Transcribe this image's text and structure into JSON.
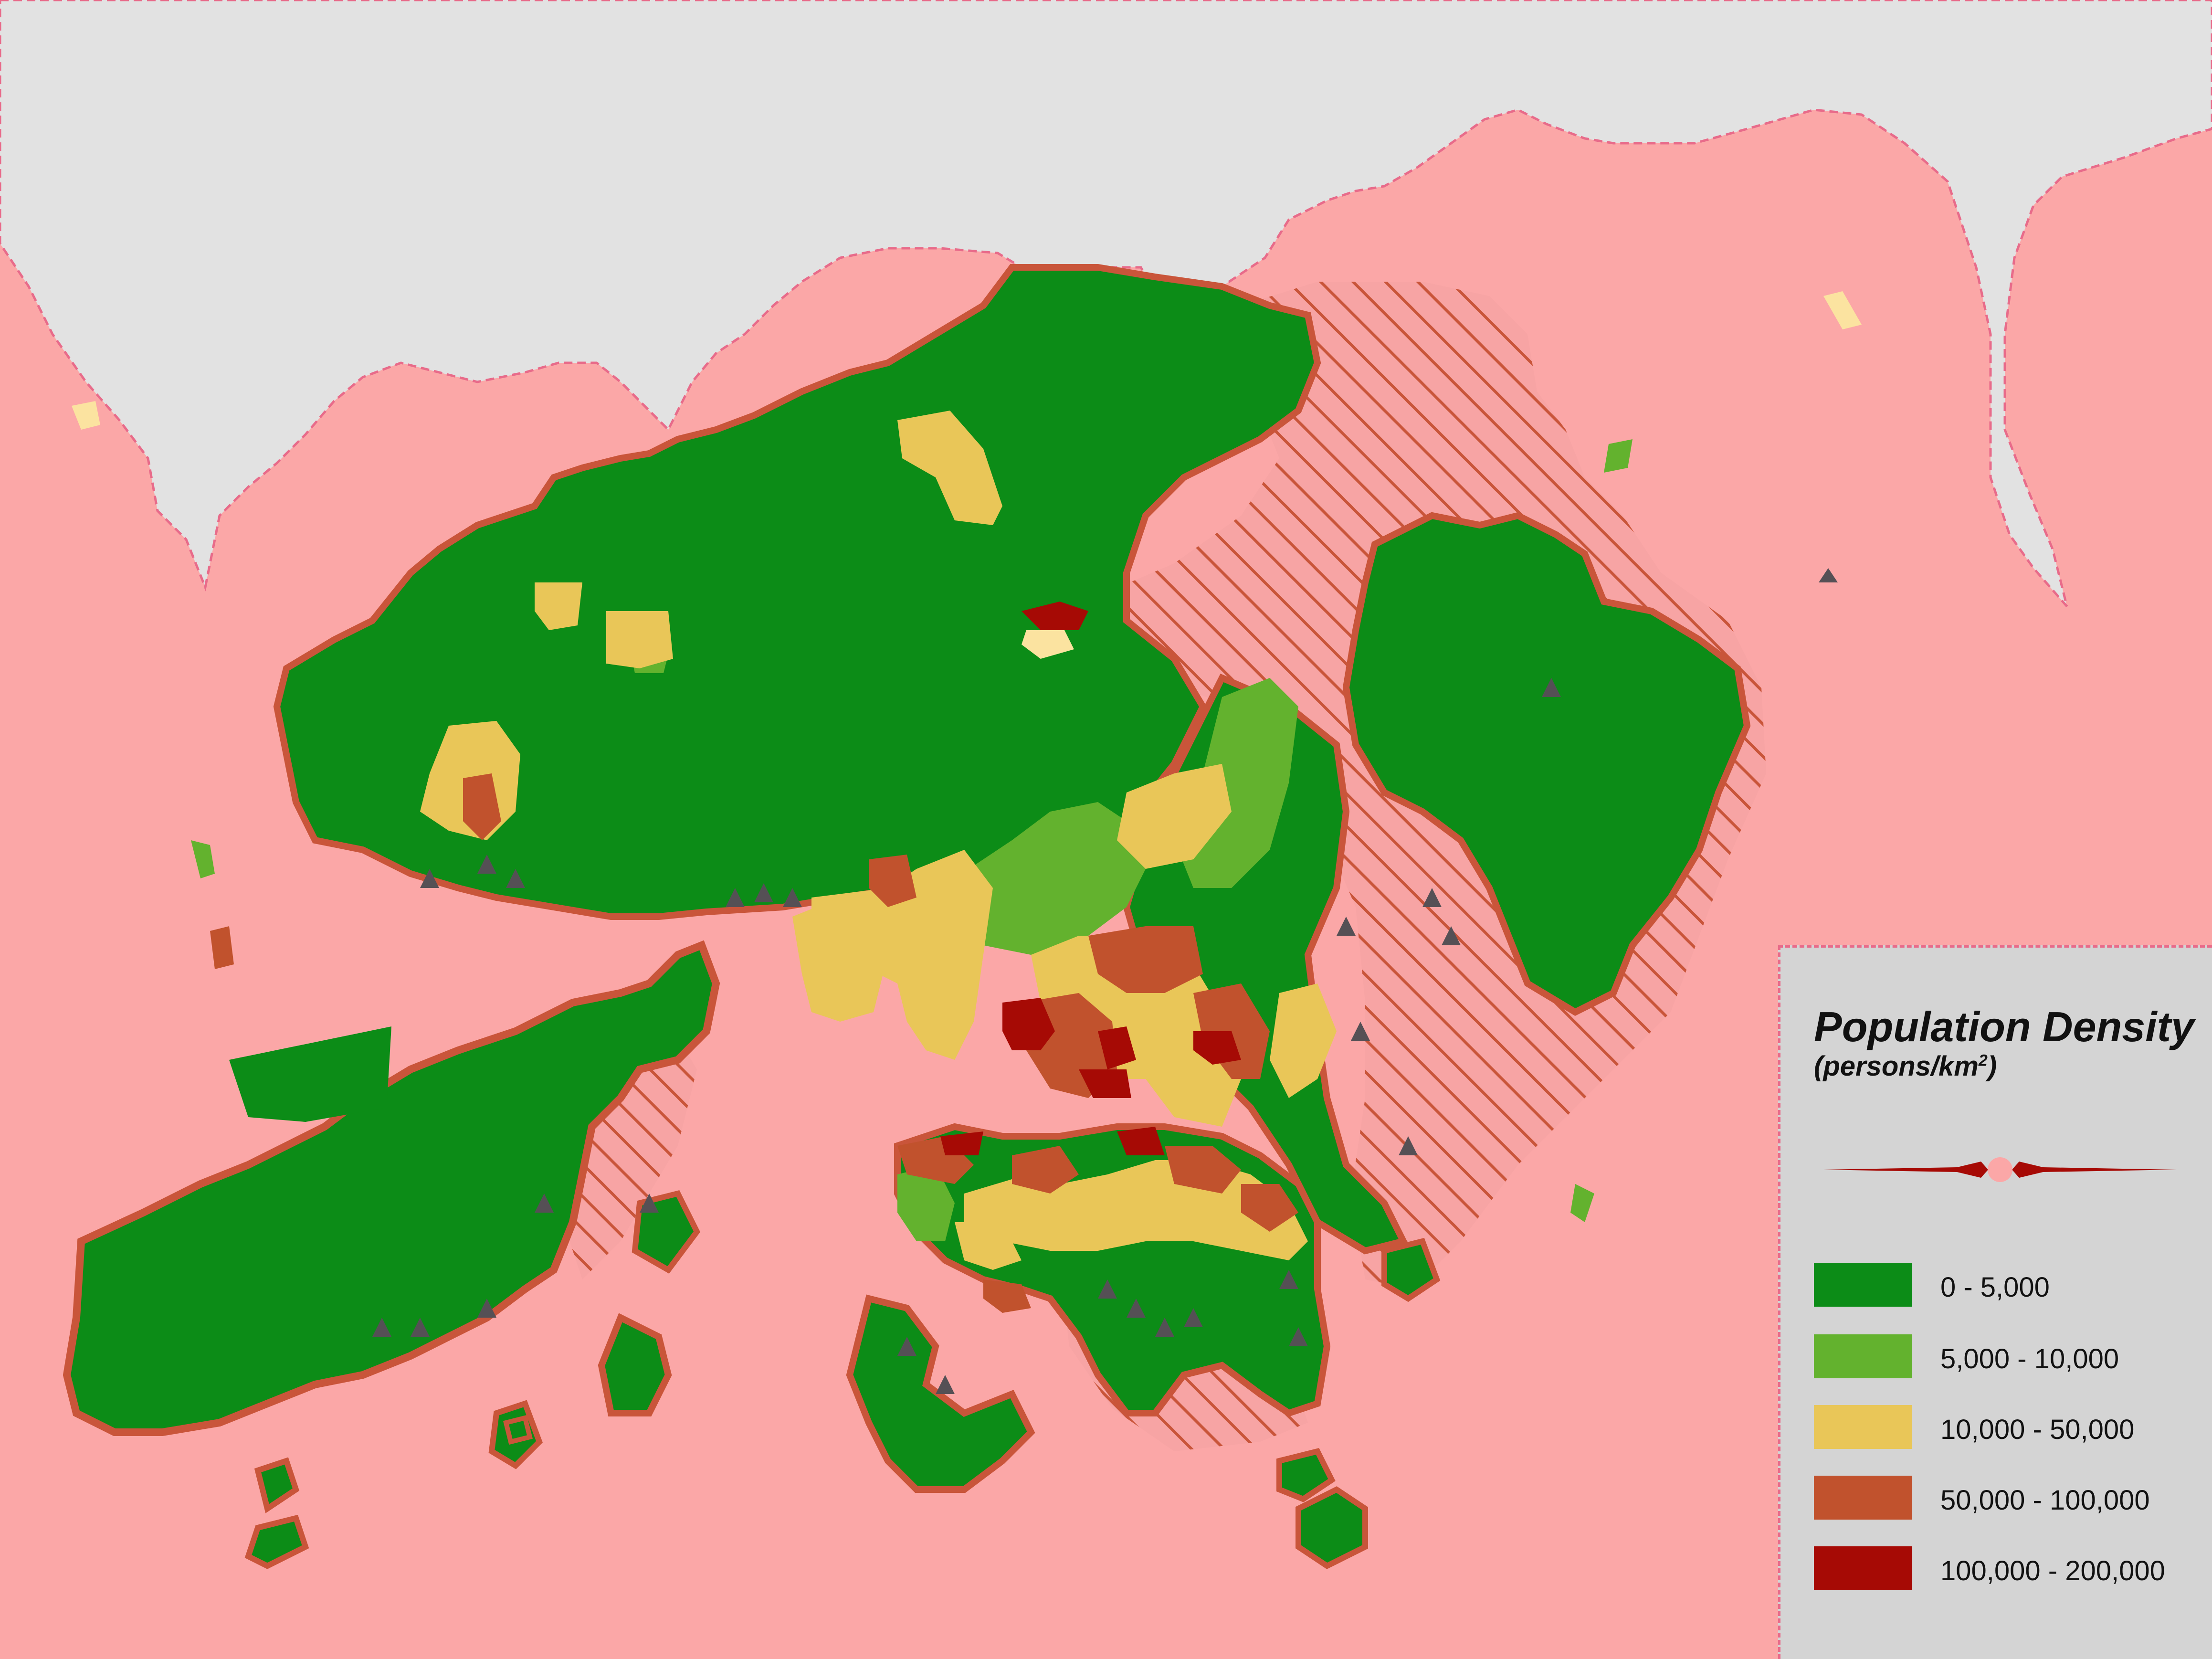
{
  "map": {
    "colors": {
      "sea": "#fba7a7",
      "mainland": "#e2e2e2",
      "border": "#e86b8a",
      "hatch": "#c9553a",
      "band_0_5000": "#0c8c17",
      "band_5000_10000": "#63b22e",
      "band_10000_50000": "#e9c658",
      "band_50000_100000": "#c1522d",
      "band_100000_200000": "#a60a05"
    }
  },
  "legend": {
    "title": "Population Density",
    "subtitle": "(persons/km",
    "subtitle_sup": "2",
    "subtitle_end": ")",
    "items": [
      {
        "label": "0 - 5,000",
        "color": "#0c8c17"
      },
      {
        "label": "5,000 - 10,000",
        "color": "#63b22e"
      },
      {
        "label": "10,000 - 50,000",
        "color": "#e9c658"
      },
      {
        "label": "50,000 - 100,000",
        "color": "#c1522d"
      },
      {
        "label": "100,000 - 200,000",
        "color": "#a60a05"
      }
    ]
  }
}
